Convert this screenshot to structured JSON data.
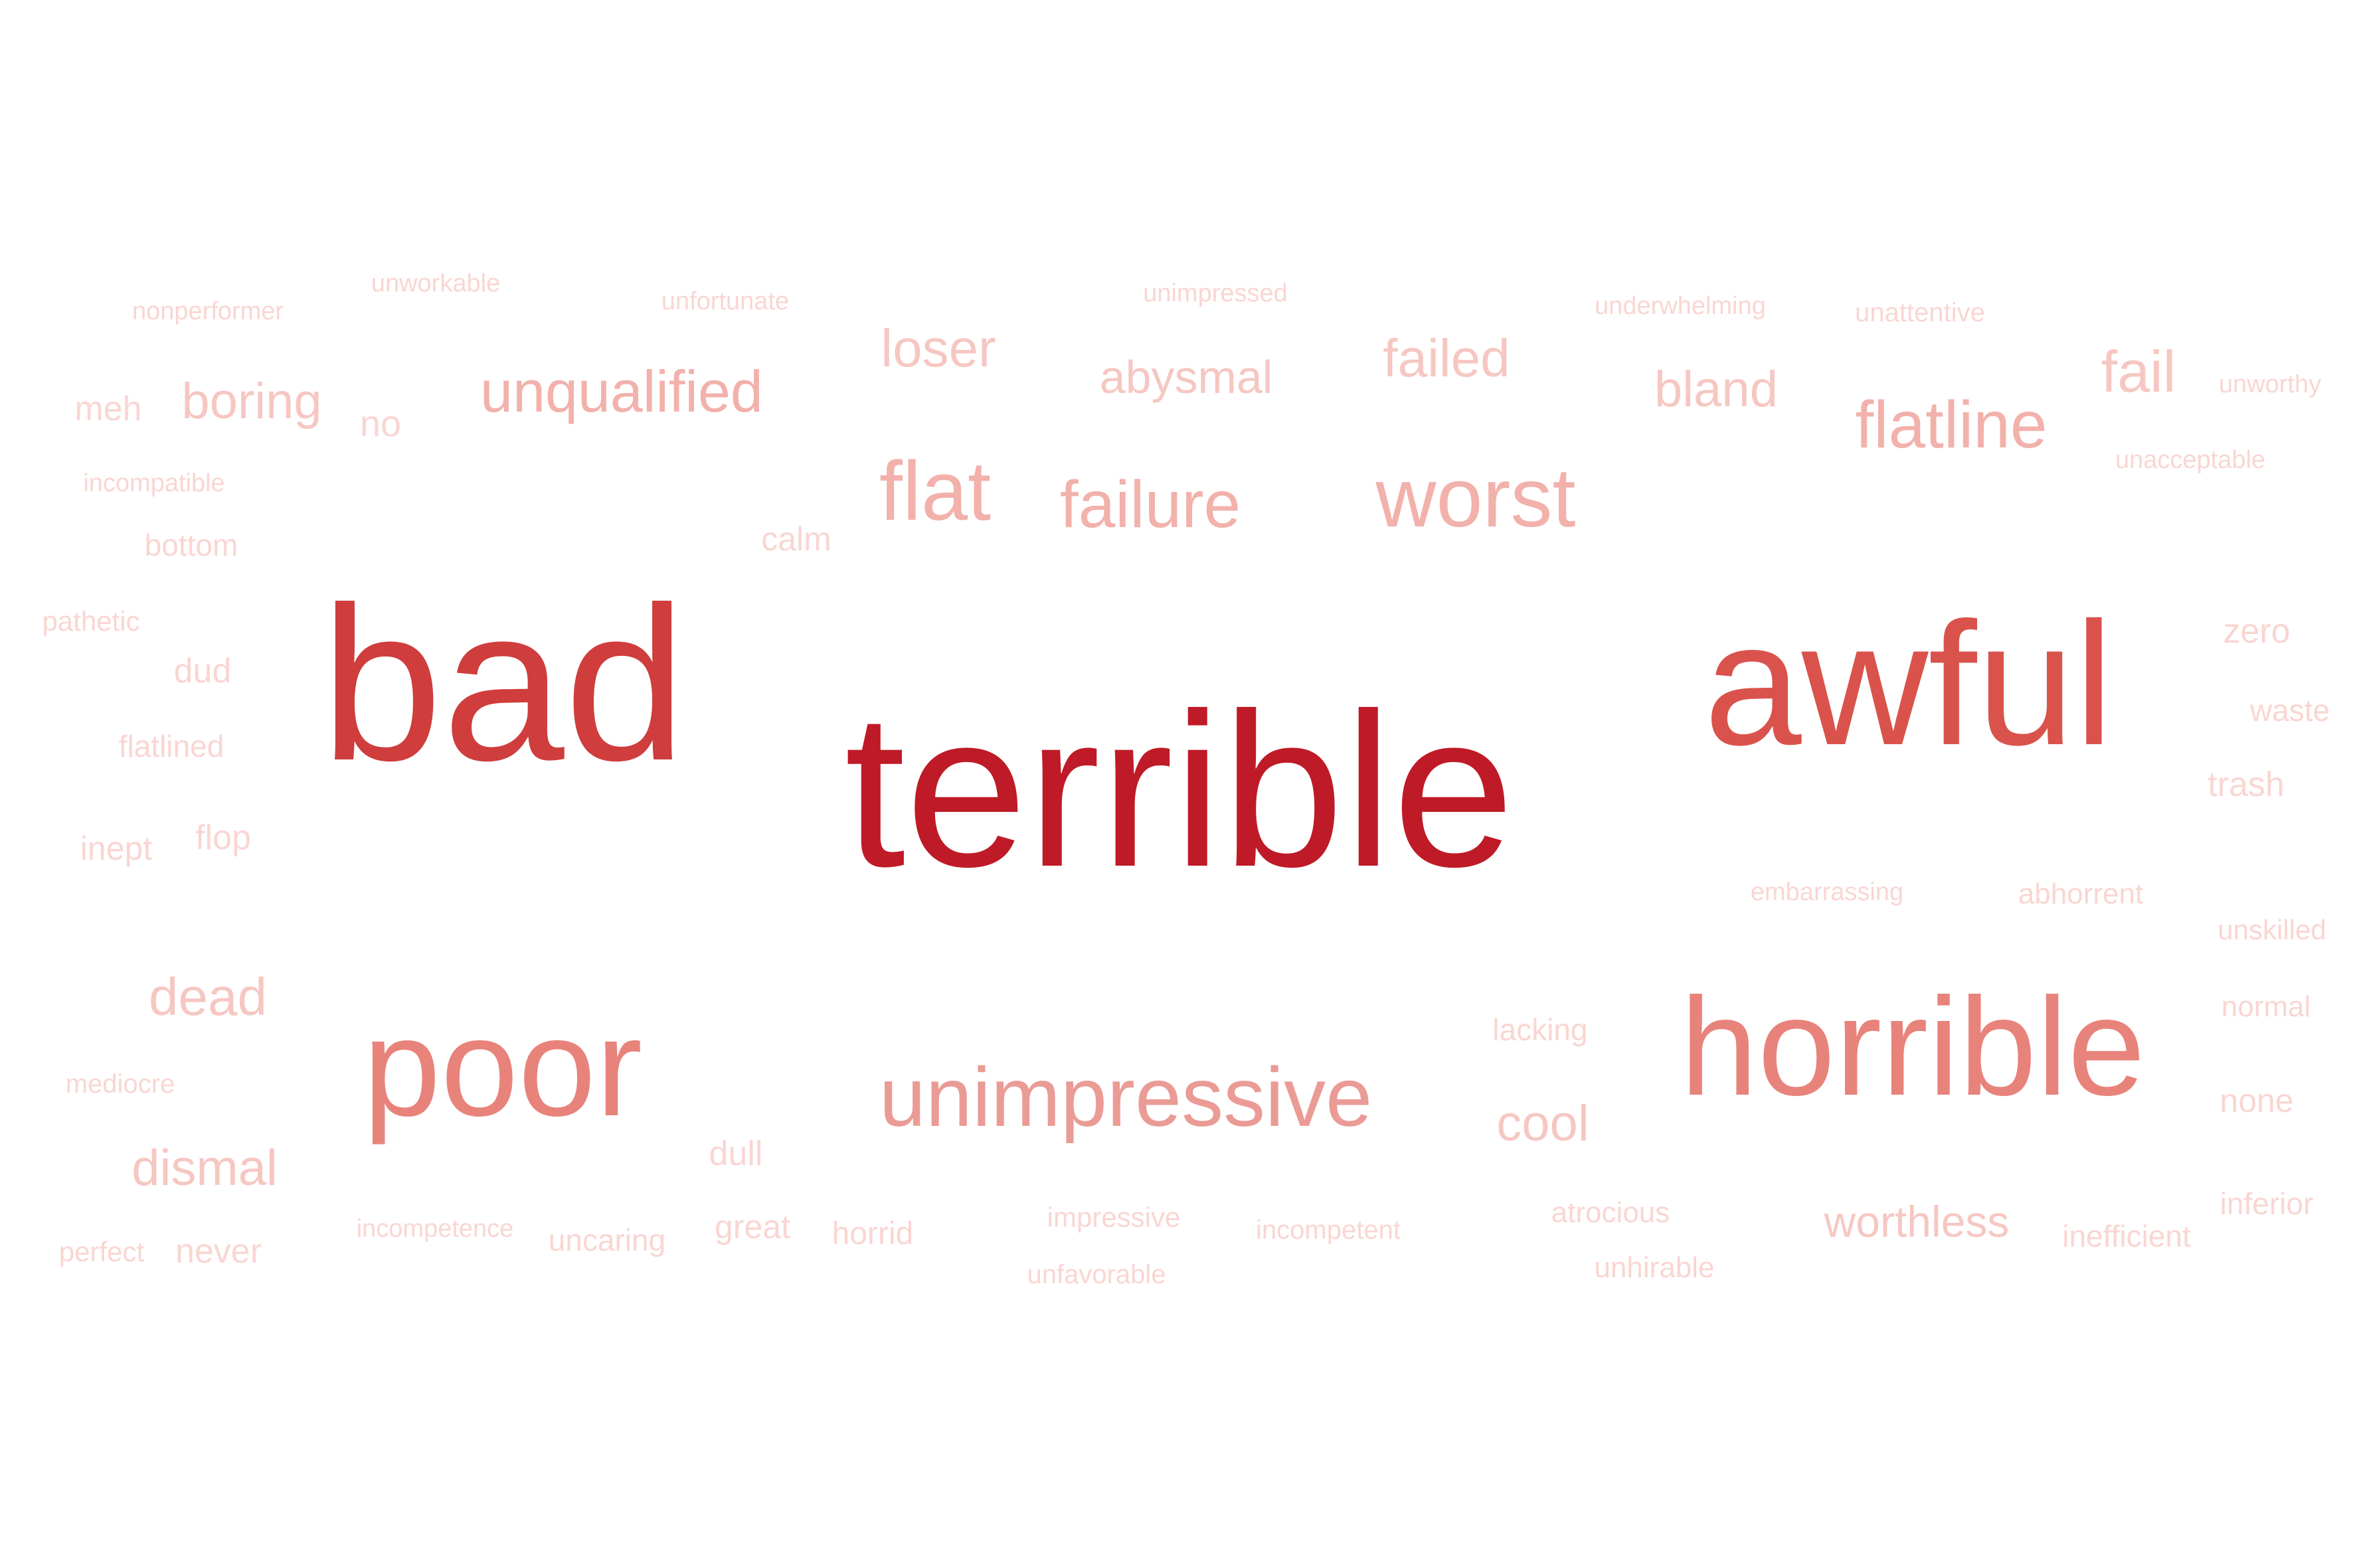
{
  "colors": {
    "background": "#ffffff",
    "tier1": "#bf1a27",
    "tier2": "#cf3d3d",
    "tier3": "#d9534c",
    "tier4": "#e8837b",
    "tier5": "#eb9b95",
    "tier6": "#f2b1ab",
    "tier7": "#f6c7c2",
    "tier8": "#f9d6d2"
  },
  "words": [
    {
      "text": "terrible",
      "tone": "tier1"
    },
    {
      "text": "bad",
      "tone": "tier2"
    },
    {
      "text": "awful",
      "tone": "tier3"
    },
    {
      "text": "poor",
      "tone": "tier4"
    },
    {
      "text": "horrible",
      "tone": "tier4"
    },
    {
      "text": "unimpressive",
      "tone": "tier5"
    },
    {
      "text": "worst",
      "tone": "tier6"
    },
    {
      "text": "flat",
      "tone": "tier6"
    },
    {
      "text": "failure",
      "tone": "tier6"
    },
    {
      "text": "unqualified",
      "tone": "tier6"
    },
    {
      "text": "flatline",
      "tone": "tier6"
    },
    {
      "text": "dead",
      "tone": "tier7"
    },
    {
      "text": "dismal",
      "tone": "tier7"
    },
    {
      "text": "loser",
      "tone": "tier7"
    },
    {
      "text": "failed",
      "tone": "tier7"
    },
    {
      "text": "abysmal",
      "tone": "tier7"
    },
    {
      "text": "boring",
      "tone": "tier7"
    },
    {
      "text": "bland",
      "tone": "tier7"
    },
    {
      "text": "fail",
      "tone": "tier7"
    },
    {
      "text": "cool",
      "tone": "tier7"
    },
    {
      "text": "worthless",
      "tone": "tier7"
    },
    {
      "text": "no",
      "tone": "tier8"
    },
    {
      "text": "meh",
      "tone": "tier8"
    },
    {
      "text": "calm",
      "tone": "tier8"
    },
    {
      "text": "bottom",
      "tone": "tier8"
    },
    {
      "text": "dud",
      "tone": "tier8"
    },
    {
      "text": "flatlined",
      "tone": "tier8"
    },
    {
      "text": "inept",
      "tone": "tier8"
    },
    {
      "text": "flop",
      "tone": "tier8"
    },
    {
      "text": "pathetic",
      "tone": "tier8"
    },
    {
      "text": "incompatible",
      "tone": "tier8"
    },
    {
      "text": "nonperformer",
      "tone": "tier8"
    },
    {
      "text": "unworkable",
      "tone": "tier8"
    },
    {
      "text": "unfortunate",
      "tone": "tier8"
    },
    {
      "text": "unimpressed",
      "tone": "tier8"
    },
    {
      "text": "underwhelming",
      "tone": "tier8"
    },
    {
      "text": "unattentive",
      "tone": "tier8"
    },
    {
      "text": "unworthy",
      "tone": "tier8"
    },
    {
      "text": "unacceptable",
      "tone": "tier8"
    },
    {
      "text": "zero",
      "tone": "tier8"
    },
    {
      "text": "waste",
      "tone": "tier8"
    },
    {
      "text": "trash",
      "tone": "tier8"
    },
    {
      "text": "embarrassing",
      "tone": "tier8"
    },
    {
      "text": "abhorrent",
      "tone": "tier8"
    },
    {
      "text": "unskilled",
      "tone": "tier8"
    },
    {
      "text": "normal",
      "tone": "tier8"
    },
    {
      "text": "none",
      "tone": "tier8"
    },
    {
      "text": "inferior",
      "tone": "tier8"
    },
    {
      "text": "inefficient",
      "tone": "tier8"
    },
    {
      "text": "lacking",
      "tone": "tier8"
    },
    {
      "text": "atrocious",
      "tone": "tier8"
    },
    {
      "text": "unhirable",
      "tone": "tier8"
    },
    {
      "text": "mediocre",
      "tone": "tier8"
    },
    {
      "text": "perfect",
      "tone": "tier8"
    },
    {
      "text": "never",
      "tone": "tier8"
    },
    {
      "text": "incompetence",
      "tone": "tier8"
    },
    {
      "text": "uncaring",
      "tone": "tier8"
    },
    {
      "text": "dull",
      "tone": "tier8"
    },
    {
      "text": "great",
      "tone": "tier8"
    },
    {
      "text": "horrid",
      "tone": "tier8"
    },
    {
      "text": "impressive",
      "tone": "tier8"
    },
    {
      "text": "unfavorable",
      "tone": "tier8"
    },
    {
      "text": "incompetent",
      "tone": "tier8"
    }
  ]
}
